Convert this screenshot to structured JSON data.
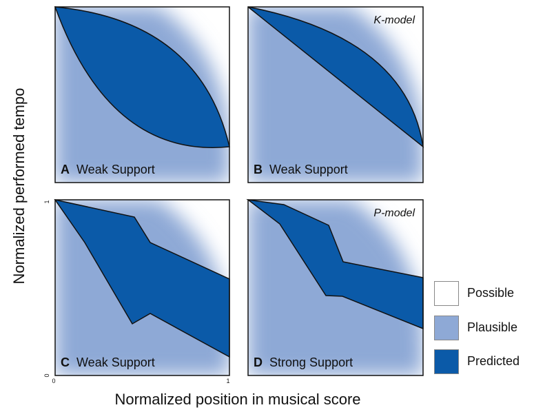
{
  "y_axis_label": "Normalized performed tempo",
  "x_axis_label": "Normalized position in musical score",
  "ticks": {
    "x_min": "0",
    "x_max": "1",
    "y_min": "0",
    "y_max": "1"
  },
  "panels": [
    {
      "letter": "A",
      "support": "Weak Support",
      "model": ""
    },
    {
      "letter": "B",
      "support": "Weak Support",
      "model": "K-model"
    },
    {
      "letter": "C",
      "support": "Weak Support",
      "model": ""
    },
    {
      "letter": "D",
      "support": "Strong Support",
      "model": "P-model"
    }
  ],
  "legend": [
    {
      "label": "Possible",
      "color": "#ffffff"
    },
    {
      "label": "Plausible",
      "color": "#8ea9d6"
    },
    {
      "label": "Predicted",
      "color": "#0b5aa8"
    }
  ],
  "colors": {
    "plausible": "#8ea9d6",
    "predicted": "#0b5aa8",
    "outline": "#111111"
  }
}
